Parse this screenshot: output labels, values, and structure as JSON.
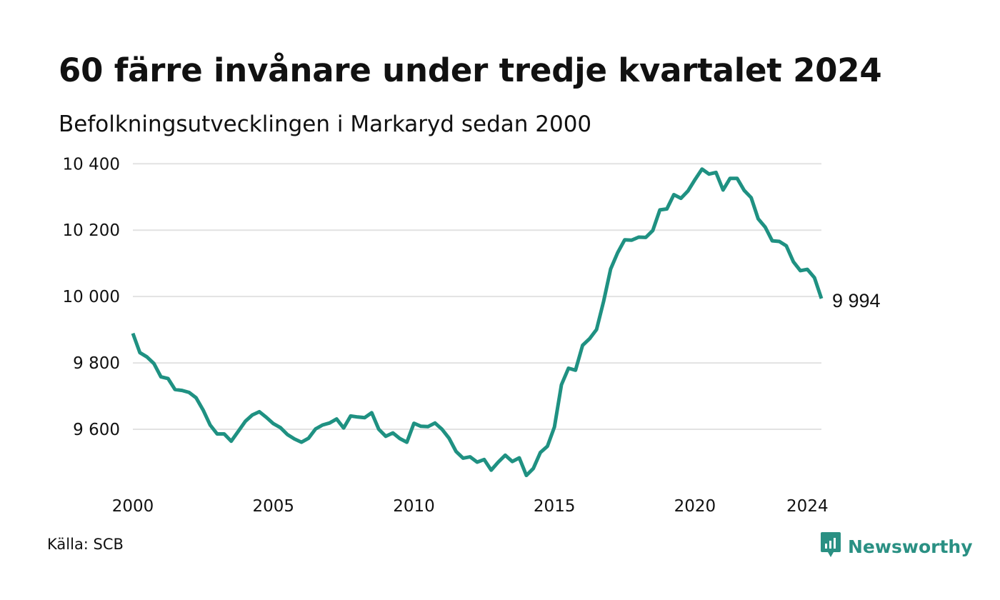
{
  "title": "60 färre invånare under tredje kvartalet 2024",
  "subtitle": "Befolkningsutvecklingen i Markaryd sedan 2000",
  "source": "Källa: SCB",
  "brand": {
    "name": "Newsworthy",
    "color": "#2a9083",
    "logo_icon": "newsworthy-logo-icon"
  },
  "chart_data": {
    "type": "line",
    "title": "60 färre invånare under tredje kvartalet 2024",
    "subtitle": "Befolkningsutvecklingen i Markaryd sedan 2000",
    "xlabel": "",
    "ylabel": "",
    "line_color": "#1f9182",
    "grid": true,
    "grid_color": "#e2e2e2",
    "x_ticks": [
      2000,
      2005,
      2010,
      2015,
      2020,
      2024
    ],
    "x_tick_labels": [
      "2000",
      "2005",
      "2010",
      "2015",
      "2020",
      "2024"
    ],
    "y_ticks": [
      9600,
      9800,
      10000,
      10200,
      10400
    ],
    "y_tick_labels": [
      "9 600",
      "9 800",
      "10 000",
      "10 200",
      "10 400"
    ],
    "xlim": [
      2000,
      2024.5
    ],
    "ylim": [
      9430,
      10420
    ],
    "end_label": "9 994",
    "series": [
      {
        "x": [
          2000,
          2000.25,
          2000.5,
          2000.75,
          2001,
          2001.25,
          2001.5,
          2001.75,
          2002,
          2002.25,
          2002.5,
          2002.75,
          2003,
          2003.25,
          2003.5,
          2003.75,
          2004,
          2004.25,
          2004.5,
          2004.75,
          2005,
          2005.25,
          2005.5,
          2005.75,
          2006,
          2006.25,
          2006.5,
          2006.75,
          2007,
          2007.25,
          2007.5,
          2007.75,
          2008,
          2008.25,
          2008.5,
          2008.75,
          2009,
          2009.25,
          2009.5,
          2009.75,
          2010,
          2010.25,
          2010.5,
          2010.75,
          2011,
          2011.25,
          2011.5,
          2011.75,
          2012,
          2012.25,
          2012.5,
          2012.75,
          2013,
          2013.25,
          2013.5,
          2013.75,
          2014,
          2014.25,
          2014.5,
          2014.75,
          2015,
          2015.25,
          2015.5,
          2015.75,
          2016,
          2016.25,
          2016.5,
          2016.75,
          2017,
          2017.25,
          2017.5,
          2017.75,
          2018,
          2018.25,
          2018.5,
          2018.75,
          2019,
          2019.25,
          2019.5,
          2019.75,
          2020,
          2020.25,
          2020.5,
          2020.75,
          2021,
          2021.25,
          2021.5,
          2021.75,
          2022,
          2022.25,
          2022.5,
          2022.75,
          2023,
          2023.25,
          2023.5,
          2023.75,
          2024,
          2024.25,
          2024.5
        ],
        "values": [
          9889,
          9831,
          9818,
          9798,
          9758,
          9753,
          9720,
          9717,
          9711,
          9695,
          9658,
          9613,
          9586,
          9586,
          9564,
          9594,
          9624,
          9643,
          9653,
          9636,
          9617,
          9605,
          9584,
          9571,
          9561,
          9573,
          9601,
          9613,
          9619,
          9631,
          9604,
          9640,
          9637,
          9635,
          9650,
          9600,
          9579,
          9589,
          9572,
          9561,
          9618,
          9609,
          9608,
          9619,
          9600,
          9573,
          9533,
          9513,
          9517,
          9501,
          9509,
          9477,
          9501,
          9522,
          9503,
          9514,
          9461,
          9482,
          9530,
          9549,
          9607,
          9734,
          9784,
          9778,
          9853,
          9873,
          9901,
          9986,
          10083,
          10132,
          10171,
          10170,
          10179,
          10178,
          10199,
          10261,
          10264,
          10307,
          10296,
          10318,
          10352,
          10384,
          10369,
          10374,
          10321,
          10356,
          10356,
          10320,
          10298,
          10234,
          10209,
          10168,
          10166,
          10153,
          10105,
          10078,
          10082,
          10057,
          9994
        ]
      }
    ]
  }
}
